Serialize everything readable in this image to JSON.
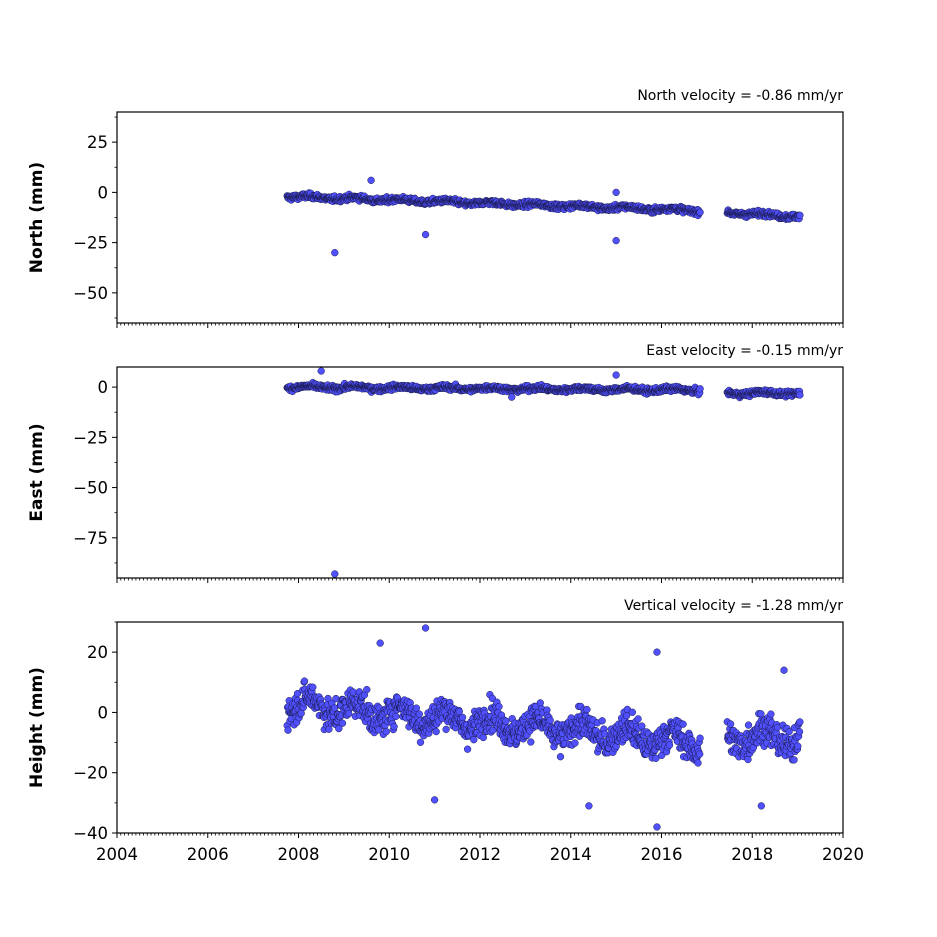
{
  "colors": {
    "marker_fill": "#5050ff",
    "marker_edge": "#1a1a4d",
    "axis": "#000000"
  },
  "chart_data": [
    {
      "type": "scatter",
      "title": "North velocity = -0.86 mm/yr",
      "xlabel": "",
      "ylabel": "North (mm)",
      "xlim": [
        2004,
        2020
      ],
      "ylim": [
        -65,
        40
      ],
      "x_ticks": [
        2004,
        2006,
        2008,
        2010,
        2012,
        2014,
        2016,
        2018,
        2020
      ],
      "x_tick_labels": [],
      "y_ticks": [
        25,
        0,
        -25,
        -50
      ],
      "y_tick_labels": [
        "25",
        "0",
        "−25",
        "−50"
      ],
      "grid": false,
      "series": [
        {
          "segments": [
            {
              "start": 2007.75,
              "end": 2016.85,
              "mean_start": -2.0,
              "mean_end": -9.0,
              "spread": 1.6
            },
            {
              "start": 2017.45,
              "end": 2019.05,
              "mean_start": -10.0,
              "mean_end": -12.0,
              "spread": 1.6
            }
          ]
        }
      ],
      "outliers": [
        {
          "x": 2008.8,
          "y": -30
        },
        {
          "x": 2009.6,
          "y": 6
        },
        {
          "x": 2010.8,
          "y": -21
        },
        {
          "x": 2015.0,
          "y": -24
        },
        {
          "x": 2015.0,
          "y": 0
        }
      ]
    },
    {
      "type": "scatter",
      "title": "East velocity = -0.15 mm/yr",
      "xlabel": "",
      "ylabel": "East (mm)",
      "xlim": [
        2004,
        2020
      ],
      "ylim": [
        -95,
        10
      ],
      "x_ticks": [
        2004,
        2006,
        2008,
        2010,
        2012,
        2014,
        2016,
        2018,
        2020
      ],
      "x_tick_labels": [],
      "y_ticks": [
        0,
        -25,
        -50,
        -75
      ],
      "y_tick_labels": [
        "0",
        "−25",
        "−50",
        "−75"
      ],
      "grid": false,
      "series": [
        {
          "segments": [
            {
              "start": 2007.75,
              "end": 2016.85,
              "mean_start": 0.0,
              "mean_end": -1.5,
              "spread": 1.6
            },
            {
              "start": 2017.45,
              "end": 2019.05,
              "mean_start": -3.0,
              "mean_end": -3.0,
              "spread": 1.6
            }
          ]
        }
      ],
      "outliers": [
        {
          "x": 2008.5,
          "y": 8
        },
        {
          "x": 2008.8,
          "y": -93
        },
        {
          "x": 2012.7,
          "y": -5
        },
        {
          "x": 2015.0,
          "y": 6
        }
      ]
    },
    {
      "type": "scatter",
      "title": "Vertical velocity = -1.28 mm/yr",
      "xlabel": "",
      "ylabel": "Height (mm)",
      "xlim": [
        2004,
        2020
      ],
      "ylim": [
        -40,
        30
      ],
      "x_ticks": [
        2004,
        2006,
        2008,
        2010,
        2012,
        2014,
        2016,
        2018,
        2020
      ],
      "x_tick_labels": [
        "2004",
        "2006",
        "2008",
        "2010",
        "2012",
        "2014",
        "2016",
        "2018",
        "2020"
      ],
      "y_ticks": [
        20,
        0,
        -20,
        -40
      ],
      "y_tick_labels": [
        "20",
        "0",
        "−20",
        "−40"
      ],
      "grid": false,
      "series": [
        {
          "segments": [
            {
              "start": 2007.75,
              "end": 2016.85,
              "mean_start": 3.0,
              "mean_end": -10.0,
              "spread": 6.5
            },
            {
              "start": 2017.45,
              "end": 2019.05,
              "mean_start": -8.0,
              "mean_end": -8.0,
              "spread": 7.0
            }
          ]
        }
      ],
      "outliers": [
        {
          "x": 2009.8,
          "y": 23
        },
        {
          "x": 2010.8,
          "y": 28
        },
        {
          "x": 2011.0,
          "y": -29
        },
        {
          "x": 2014.4,
          "y": -31
        },
        {
          "x": 2015.9,
          "y": 20
        },
        {
          "x": 2015.9,
          "y": -38
        },
        {
          "x": 2018.2,
          "y": -31
        },
        {
          "x": 2018.7,
          "y": 14
        }
      ]
    }
  ]
}
